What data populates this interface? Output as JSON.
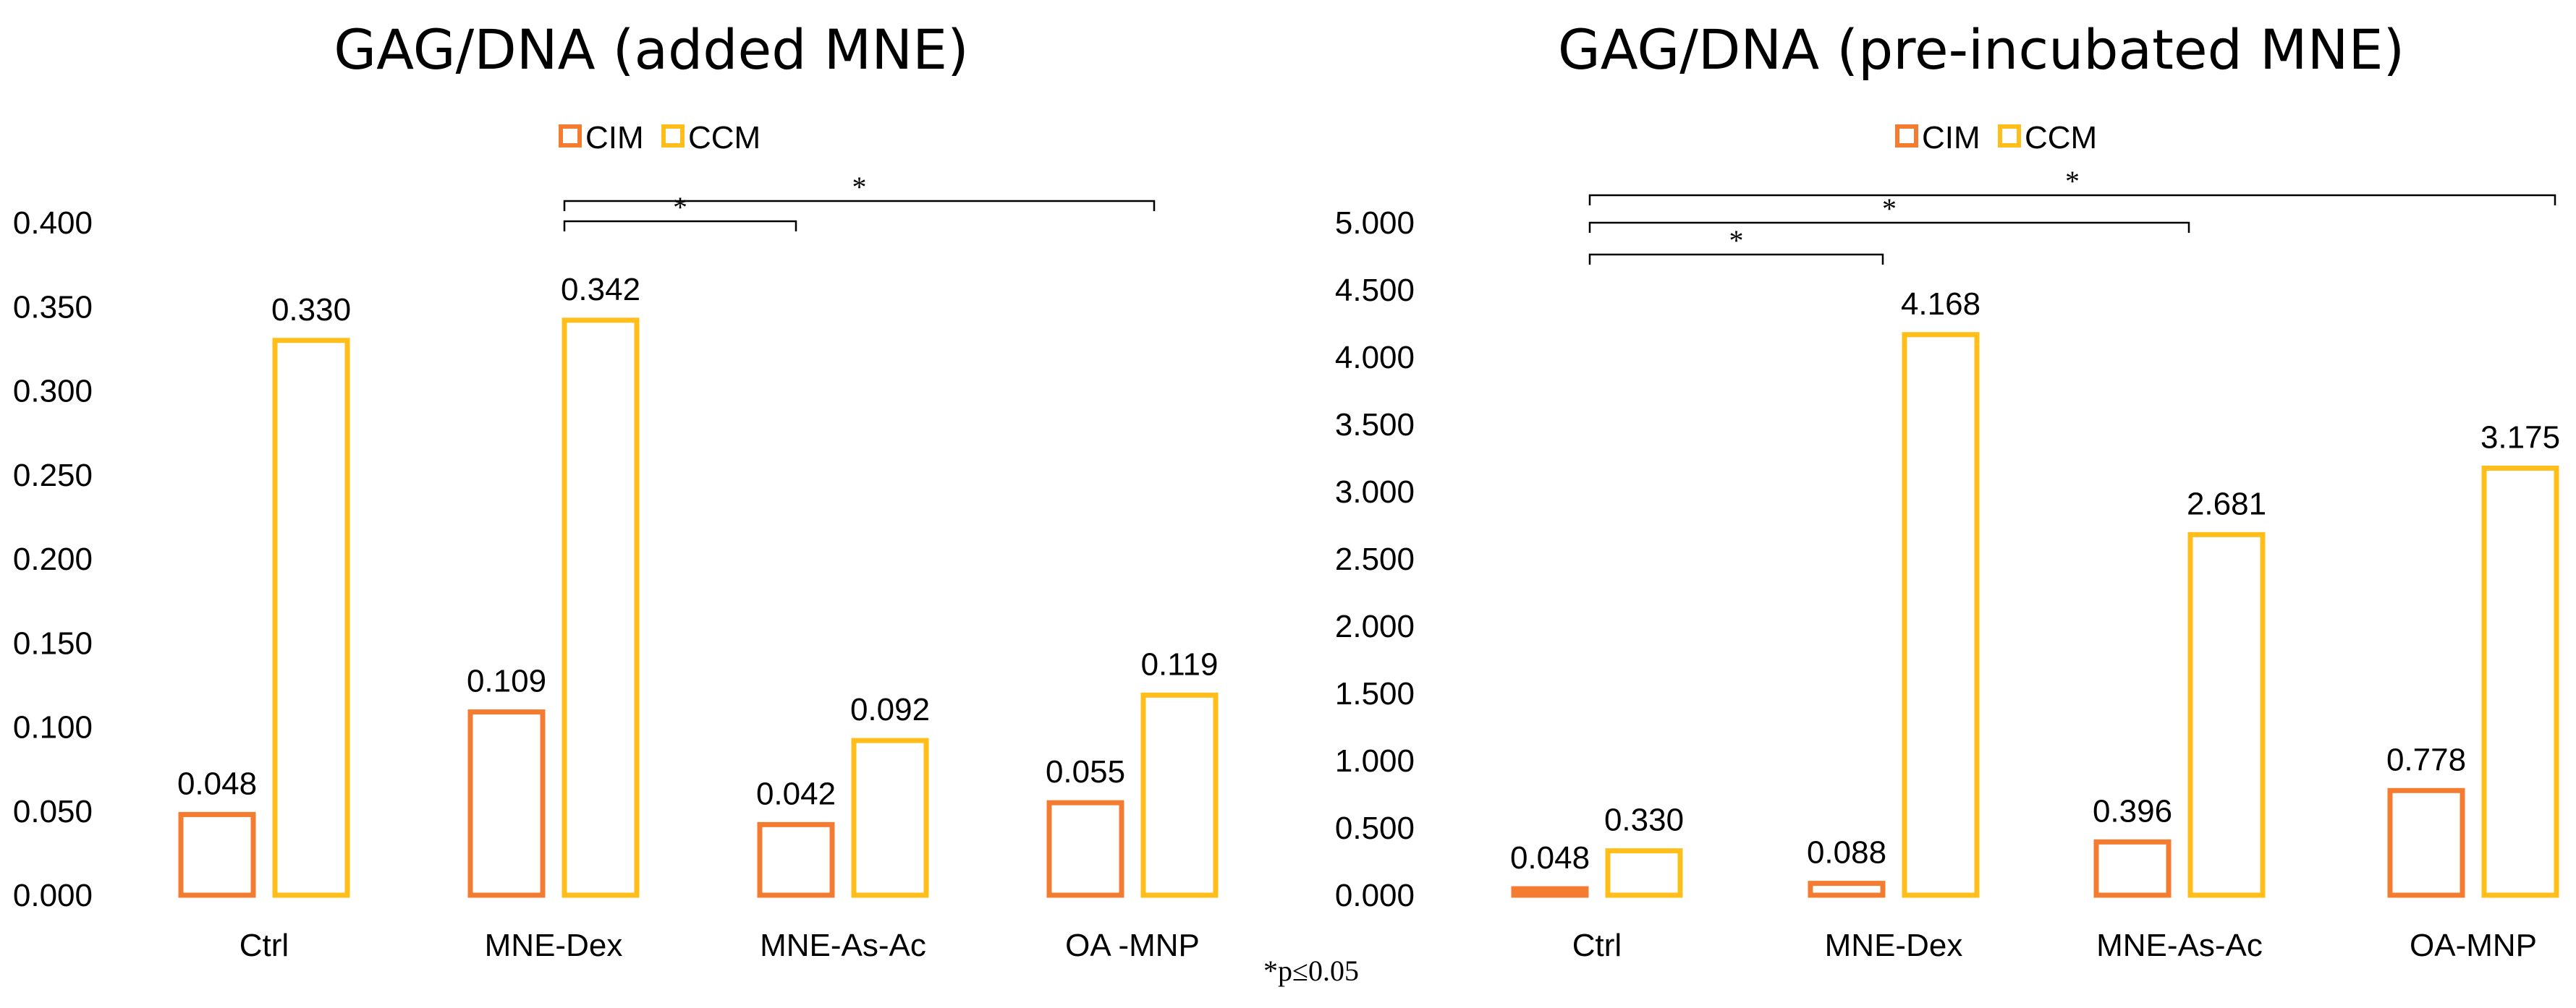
{
  "colors": {
    "cim": "#F47C30",
    "ccm": "#FFBE1A"
  },
  "footnote": "*p≤0.05",
  "chart_data": [
    {
      "type": "bar",
      "title": "GAG/DNA (added MNE)",
      "categories": [
        "Ctrl",
        "MNE-Dex",
        "MNE-As-Ac",
        "OA -MNP"
      ],
      "series": [
        {
          "name": "CIM",
          "values": [
            0.048,
            0.109,
            0.042,
            0.055
          ],
          "labels": [
            "0.048",
            "0.109",
            "0.042",
            "0.055"
          ]
        },
        {
          "name": "CCM",
          "values": [
            0.33,
            0.342,
            0.092,
            0.119
          ],
          "labels": [
            "0.330",
            "0.342",
            "0.092",
            "0.119"
          ]
        }
      ],
      "ylim": [
        0,
        0.4
      ],
      "yticks": [
        0,
        0.05,
        0.1,
        0.15,
        0.2,
        0.25,
        0.3,
        0.35,
        0.4
      ],
      "ytick_labels": [
        "0.000",
        "0.050",
        "0.100",
        "0.150",
        "0.200",
        "0.250",
        "0.300",
        "0.350",
        "0.400"
      ],
      "xlabel": "",
      "ylabel": "",
      "legend": [
        "CIM",
        "CCM"
      ],
      "significance": [
        {
          "from": 1,
          "to": 2,
          "label": "*"
        },
        {
          "from": 1,
          "to": 3,
          "label": "*"
        }
      ]
    },
    {
      "type": "bar",
      "title": "GAG/DNA (pre-incubated MNE)",
      "categories": [
        "Ctrl",
        "MNE-Dex",
        "MNE-As-Ac",
        "OA-MNP"
      ],
      "series": [
        {
          "name": "CIM",
          "values": [
            0.048,
            0.088,
            0.396,
            0.778
          ],
          "labels": [
            "0.048",
            "0.088",
            "0.396",
            "0.778"
          ]
        },
        {
          "name": "CCM",
          "values": [
            0.33,
            4.168,
            2.681,
            3.175
          ],
          "labels": [
            "0.330",
            "4.168",
            "2.681",
            "3.175"
          ]
        }
      ],
      "ylim": [
        0,
        5
      ],
      "yticks": [
        0,
        0.5,
        1,
        1.5,
        2,
        2.5,
        3,
        3.5,
        4,
        4.5,
        5
      ],
      "ytick_labels": [
        "0.000",
        "0.500",
        "1.000",
        "1.500",
        "2.000",
        "2.500",
        "3.000",
        "3.500",
        "4.000",
        "4.500",
        "5.000"
      ],
      "xlabel": "",
      "ylabel": "",
      "legend": [
        "CIM",
        "CCM"
      ],
      "significance": [
        {
          "from": 0,
          "to": 1,
          "label": "*"
        },
        {
          "from": 0,
          "to": 2,
          "label": "*"
        },
        {
          "from": 0,
          "to": 3,
          "label": "*"
        }
      ]
    }
  ]
}
